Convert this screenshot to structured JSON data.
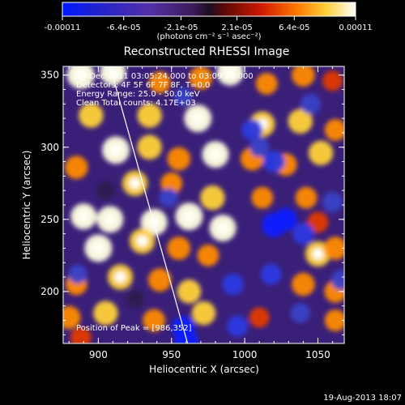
{
  "chart_data": {
    "type": "heatmap",
    "title": "Reconstructed RHESSI Image",
    "xlabel": "Heliocentric X (arcsec)",
    "ylabel": "Heliocentric Y (arcsec)",
    "xlim": [
      876,
      1068
    ],
    "ylim": [
      164,
      356
    ],
    "x_ticks": [
      "900",
      "950",
      "1000",
      "1050"
    ],
    "y_ticks": [
      "200",
      "250",
      "300",
      "350"
    ],
    "x_tick_values": [
      900,
      950,
      1000,
      1050
    ],
    "y_tick_values": [
      200,
      250,
      300,
      350
    ],
    "colorbar": {
      "tick_labels": [
        "-0.00011",
        "-6.4e-05",
        "-2.1e-05",
        "2.1e-05",
        "6.4e-05",
        "0.00011"
      ],
      "tick_values": [
        -0.00011,
        -6.4e-05,
        -2.1e-05,
        2.1e-05,
        6.4e-05,
        0.00011
      ],
      "range": [
        -0.00011,
        0.00011
      ],
      "units": "(photons cm⁻² s⁻¹ asec⁻²)"
    },
    "annotations": [
      "24-Dec-2011 03:05:24.000 to 03:09:28.000",
      "Detectors: 4F 5F 6F 7F 8F, T=0.0",
      "Energy Range: 25.0 - 50.0 keV",
      "Clean    Total counts: 4.17E+03"
    ],
    "peak_label": "Position of Peak = [986,352]",
    "peak_position": [
      986,
      352
    ],
    "limb_line": [
      [
        908,
        356
      ],
      [
        961,
        164
      ]
    ],
    "blobs": [
      {
        "x": 888,
        "y": 350,
        "v": 1.0
      },
      {
        "x": 910,
        "y": 352,
        "v": 0.9
      },
      {
        "x": 942,
        "y": 345,
        "v": 0.6
      },
      {
        "x": 970,
        "y": 348,
        "v": 0.7
      },
      {
        "x": 990,
        "y": 352,
        "v": 0.95
      },
      {
        "x": 1015,
        "y": 344,
        "v": 0.6
      },
      {
        "x": 1040,
        "y": 350,
        "v": 0.7
      },
      {
        "x": 1060,
        "y": 346,
        "v": 0.5
      },
      {
        "x": 895,
        "y": 322,
        "v": 0.8
      },
      {
        "x": 935,
        "y": 322,
        "v": 0.8
      },
      {
        "x": 968,
        "y": 320,
        "v": 1.0
      },
      {
        "x": 1012,
        "y": 316,
        "v": 0.85
      },
      {
        "x": 1038,
        "y": 318,
        "v": 0.8
      },
      {
        "x": 1062,
        "y": 312,
        "v": 0.6
      },
      {
        "x": 912,
        "y": 298,
        "v": 1.0
      },
      {
        "x": 935,
        "y": 300,
        "v": 0.8
      },
      {
        "x": 955,
        "y": 292,
        "v": 0.7
      },
      {
        "x": 980,
        "y": 295,
        "v": 0.95
      },
      {
        "x": 1005,
        "y": 292,
        "v": 0.7
      },
      {
        "x": 1028,
        "y": 288,
        "v": 0.65
      },
      {
        "x": 1052,
        "y": 296,
        "v": 0.8
      },
      {
        "x": 885,
        "y": 286,
        "v": 0.7
      },
      {
        "x": 925,
        "y": 275,
        "v": 0.85
      },
      {
        "x": 950,
        "y": 275,
        "v": 0.6
      },
      {
        "x": 978,
        "y": 265,
        "v": 0.8
      },
      {
        "x": 1012,
        "y": 265,
        "v": 0.6
      },
      {
        "x": 1042,
        "y": 265,
        "v": 0.6
      },
      {
        "x": 890,
        "y": 252,
        "v": 0.9
      },
      {
        "x": 908,
        "y": 250,
        "v": 0.95
      },
      {
        "x": 938,
        "y": 248,
        "v": 0.95
      },
      {
        "x": 962,
        "y": 252,
        "v": 1.0
      },
      {
        "x": 985,
        "y": 244,
        "v": 0.95
      },
      {
        "x": 1050,
        "y": 248,
        "v": 0.55
      },
      {
        "x": 900,
        "y": 230,
        "v": 1.0
      },
      {
        "x": 930,
        "y": 235,
        "v": 0.85
      },
      {
        "x": 955,
        "y": 230,
        "v": 0.7
      },
      {
        "x": 975,
        "y": 225,
        "v": 0.6
      },
      {
        "x": 1050,
        "y": 226,
        "v": 0.85
      },
      {
        "x": 1062,
        "y": 230,
        "v": 0.7
      },
      {
        "x": 885,
        "y": 205,
        "v": 0.6
      },
      {
        "x": 915,
        "y": 210,
        "v": 0.85
      },
      {
        "x": 942,
        "y": 208,
        "v": 0.7
      },
      {
        "x": 962,
        "y": 200,
        "v": 0.75
      },
      {
        "x": 1040,
        "y": 205,
        "v": 0.7
      },
      {
        "x": 1062,
        "y": 200,
        "v": 0.65
      },
      {
        "x": 880,
        "y": 182,
        "v": 0.7
      },
      {
        "x": 905,
        "y": 185,
        "v": 0.8
      },
      {
        "x": 938,
        "y": 180,
        "v": 0.65
      },
      {
        "x": 972,
        "y": 185,
        "v": 0.75
      },
      {
        "x": 1010,
        "y": 182,
        "v": 0.5
      },
      {
        "x": 1062,
        "y": 180,
        "v": 0.6
      },
      {
        "x": 888,
        "y": 168,
        "v": 0.55
      },
      {
        "x": 1005,
        "y": 312,
        "v": -0.55
      },
      {
        "x": 1020,
        "y": 290,
        "v": -0.6
      },
      {
        "x": 1028,
        "y": 250,
        "v": -0.7
      },
      {
        "x": 1020,
        "y": 246,
        "v": -0.8
      },
      {
        "x": 1060,
        "y": 262,
        "v": -0.5
      },
      {
        "x": 1040,
        "y": 240,
        "v": -0.6
      },
      {
        "x": 1018,
        "y": 212,
        "v": -0.55
      },
      {
        "x": 992,
        "y": 205,
        "v": -0.6
      },
      {
        "x": 958,
        "y": 175,
        "v": -0.7
      },
      {
        "x": 960,
        "y": 166,
        "v": -0.75
      },
      {
        "x": 995,
        "y": 176,
        "v": -0.55
      },
      {
        "x": 1038,
        "y": 185,
        "v": -0.45
      },
      {
        "x": 1066,
        "y": 208,
        "v": -0.5
      },
      {
        "x": 1045,
        "y": 330,
        "v": -0.5
      },
      {
        "x": 958,
        "y": 335,
        "v": -0.4
      },
      {
        "x": 1010,
        "y": 300,
        "v": -0.45
      },
      {
        "x": 948,
        "y": 265,
        "v": -0.4
      },
      {
        "x": 905,
        "y": 270,
        "v": -0.35
      },
      {
        "x": 886,
        "y": 212,
        "v": -0.4
      },
      {
        "x": 925,
        "y": 195,
        "v": -0.35
      }
    ]
  },
  "footer": {
    "date": "19-Aug-2013 18:07"
  }
}
